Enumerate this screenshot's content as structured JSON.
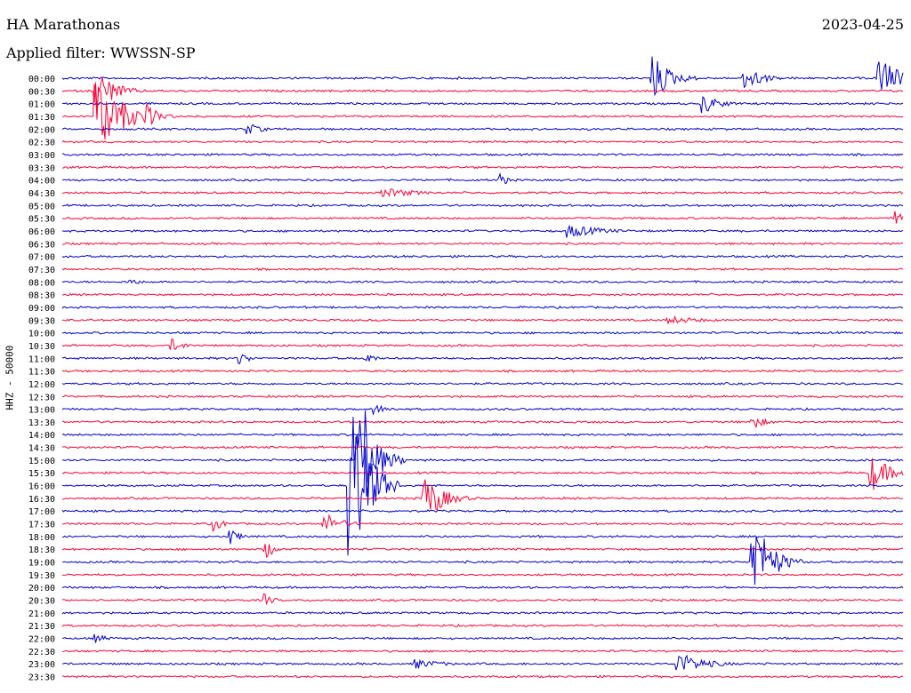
{
  "header": {
    "station": "HA Marathonas",
    "date": "2023-04-25",
    "filter": "Applied filter: WWSSN-SP",
    "channel": "HHZ - 50000"
  },
  "colors": {
    "blue": "#0000cc",
    "red": "#ff0033"
  },
  "chart_data": {
    "type": "line",
    "title": "HA Marathonas",
    "subtitle": "Applied filter: WWSSN-SP",
    "ylabel": "HHZ - 50000",
    "row_labels": [
      "00:00",
      "00:30",
      "01:00",
      "01:30",
      "02:00",
      "02:30",
      "03:00",
      "03:30",
      "04:00",
      "04:30",
      "05:00",
      "05:30",
      "06:00",
      "06:30",
      "07:00",
      "07:30",
      "08:00",
      "08:30",
      "09:00",
      "09:30",
      "10:00",
      "10:30",
      "11:00",
      "11:30",
      "12:00",
      "12:30",
      "13:00",
      "13:30",
      "14:00",
      "14:30",
      "15:00",
      "15:30",
      "16:00",
      "16:30",
      "17:00",
      "17:30",
      "18:00",
      "18:30",
      "19:00",
      "19:30",
      "20:00",
      "20:30",
      "21:00",
      "21:30",
      "22:00",
      "22:30",
      "23:00",
      "23:30"
    ],
    "row_colors": [
      "blue",
      "red"
    ],
    "grid": false,
    "events": [
      {
        "row": 0,
        "pos": 0.7,
        "amp": 30,
        "len": 0.02
      },
      {
        "row": 0,
        "pos": 0.81,
        "amp": 15,
        "len": 0.02
      },
      {
        "row": 0,
        "pos": 0.97,
        "amp": 28,
        "len": 0.02
      },
      {
        "row": 1,
        "pos": 0.04,
        "amp": 28,
        "len": 0.02
      },
      {
        "row": 2,
        "pos": 0.76,
        "amp": 12,
        "len": 0.02
      },
      {
        "row": 3,
        "pos": 0.04,
        "amp": 45,
        "len": 0.03
      },
      {
        "row": 3,
        "pos": 0.1,
        "amp": 14,
        "len": 0.015
      },
      {
        "row": 4,
        "pos": 0.22,
        "amp": 8,
        "len": 0.015
      },
      {
        "row": 8,
        "pos": 0.52,
        "amp": 8,
        "len": 0.01
      },
      {
        "row": 9,
        "pos": 0.38,
        "amp": 6,
        "len": 0.04
      },
      {
        "row": 11,
        "pos": 0.99,
        "amp": 8,
        "len": 0.01
      },
      {
        "row": 12,
        "pos": 0.6,
        "amp": 8,
        "len": 0.04
      },
      {
        "row": 16,
        "pos": 0.08,
        "amp": 6,
        "len": 0.01
      },
      {
        "row": 19,
        "pos": 0.72,
        "amp": 5,
        "len": 0.04
      },
      {
        "row": 21,
        "pos": 0.13,
        "amp": 8,
        "len": 0.015
      },
      {
        "row": 22,
        "pos": 0.21,
        "amp": 10,
        "len": 0.01
      },
      {
        "row": 22,
        "pos": 0.36,
        "amp": 8,
        "len": 0.01
      },
      {
        "row": 26,
        "pos": 0.37,
        "amp": 6,
        "len": 0.02
      },
      {
        "row": 27,
        "pos": 0.82,
        "amp": 8,
        "len": 0.015
      },
      {
        "row": 30,
        "pos": 0.35,
        "amp": 65,
        "len": 0.02
      },
      {
        "row": 30,
        "pos": 0.36,
        "amp": 75,
        "len": 0.01
      },
      {
        "row": 31,
        "pos": 0.96,
        "amp": 24,
        "len": 0.02
      },
      {
        "row": 32,
        "pos": 0.34,
        "amp": 120,
        "len": 0.02
      },
      {
        "row": 33,
        "pos": 0.43,
        "amp": 30,
        "len": 0.02
      },
      {
        "row": 35,
        "pos": 0.18,
        "amp": 10,
        "len": 0.01
      },
      {
        "row": 35,
        "pos": 0.31,
        "amp": 14,
        "len": 0.02
      },
      {
        "row": 36,
        "pos": 0.2,
        "amp": 10,
        "len": 0.01
      },
      {
        "row": 37,
        "pos": 0.24,
        "amp": 14,
        "len": 0.01
      },
      {
        "row": 38,
        "pos": 0.82,
        "amp": 55,
        "len": 0.02
      },
      {
        "row": 41,
        "pos": 0.24,
        "amp": 8,
        "len": 0.01
      },
      {
        "row": 44,
        "pos": 0.04,
        "amp": 5,
        "len": 0.015
      },
      {
        "row": 46,
        "pos": 0.42,
        "amp": 6,
        "len": 0.03
      },
      {
        "row": 46,
        "pos": 0.73,
        "amp": 14,
        "len": 0.03
      }
    ]
  }
}
